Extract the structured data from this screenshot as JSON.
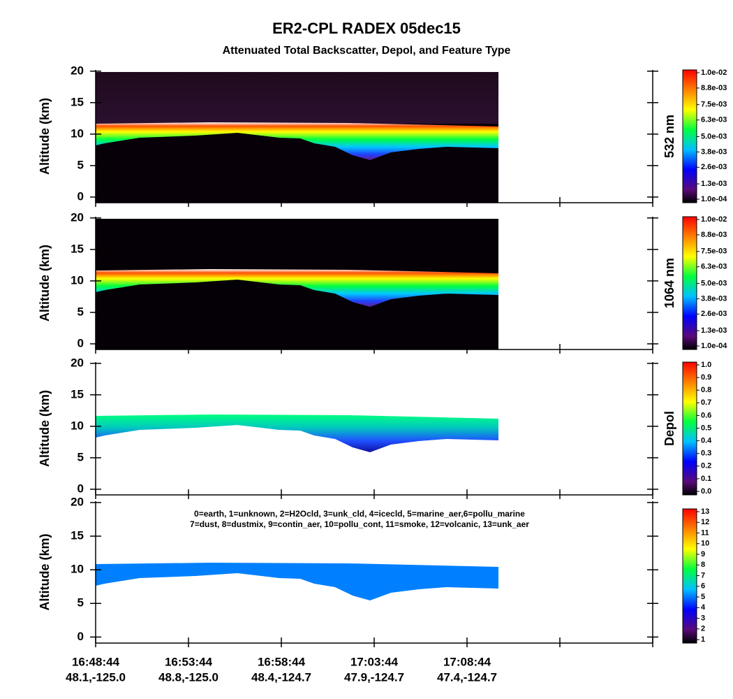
{
  "title": "ER2-CPL  RADEX  05dec15",
  "subtitle": "Attenuated Total Backscatter, Depol, and Feature Type",
  "chart_data": [
    {
      "type": "heatmap",
      "y_label": "Altitude (km)",
      "ylim": [
        -0.9,
        20.2
      ],
      "yticks": [
        0,
        5,
        10,
        15,
        20
      ],
      "colorbar_label": "532 nm",
      "clim": [
        0.0001,
        0.01
      ],
      "cticks": [
        {
          "value": 0.0001,
          "label": "1.0e-04"
        },
        {
          "value": 0.0013,
          "label": "1.3e-03"
        },
        {
          "value": 0.0026,
          "label": "2.6e-03"
        },
        {
          "value": 0.0038,
          "label": "3.8e-03"
        },
        {
          "value": 0.005,
          "label": "5.0e-03"
        },
        {
          "value": 0.0063,
          "label": "6.3e-03"
        },
        {
          "value": 0.0075,
          "label": "7.5e-03"
        },
        {
          "value": 0.0088,
          "label": "8.8e-03"
        },
        {
          "value": 0.01,
          "label": "1.0e-02"
        }
      ]
    },
    {
      "type": "heatmap",
      "y_label": "Altitude (km)",
      "ylim": [
        -0.9,
        20.2
      ],
      "yticks": [
        0,
        5,
        10,
        15,
        20
      ],
      "colorbar_label": "1064 nm",
      "clim": [
        0.0001,
        0.01
      ],
      "cticks": [
        {
          "value": 0.0001,
          "label": "1.0e-04"
        },
        {
          "value": 0.0013,
          "label": "1.3e-03"
        },
        {
          "value": 0.0026,
          "label": "2.6e-03"
        },
        {
          "value": 0.0038,
          "label": "3.8e-03"
        },
        {
          "value": 0.005,
          "label": "5.0e-03"
        },
        {
          "value": 0.0063,
          "label": "6.3e-03"
        },
        {
          "value": 0.0075,
          "label": "7.5e-03"
        },
        {
          "value": 0.0088,
          "label": "8.8e-03"
        },
        {
          "value": 0.01,
          "label": "1.0e-02"
        }
      ]
    },
    {
      "type": "heatmap",
      "y_label": "Altitude (km)",
      "ylim": [
        -0.9,
        20.2
      ],
      "yticks": [
        0,
        5,
        10,
        15,
        20
      ],
      "colorbar_label": "Depol",
      "clim": [
        0,
        1
      ],
      "cticks": [
        {
          "value": 0,
          "label": "0.0"
        },
        0.1,
        0.2,
        0.3,
        0.4,
        0.5,
        0.6,
        0.7,
        0.8,
        0.9,
        {
          "value": 1,
          "label": "1.0"
        }
      ]
    },
    {
      "type": "heatmap",
      "y_label": "Altitude (km)",
      "ylim": [
        -0.9,
        20.2
      ],
      "yticks": [
        0,
        5,
        10,
        15,
        20
      ],
      "clim": [
        1,
        13
      ],
      "cticks": [
        1,
        2,
        3,
        4,
        5,
        6,
        7,
        8,
        9,
        10,
        11,
        12,
        13
      ],
      "annotation": [
        "0=earth, 1=unknown, 2=H2Ocld, 3=unk_cld, 4=icecld, 5=marine_aer,6=pollu_marine",
        "7=dust, 8=dustmix, 9=contin_aer, 10=pollu_cont, 11=smoke, 12=volcanic, 13=unk_aer"
      ],
      "categories": [
        "16:48:44",
        "16:53:44",
        "16:58:44",
        "17:03:44",
        "17:08:44",
        null,
        null
      ],
      "category_locations": [
        "48.1,-125.0",
        "48.8,-125.0",
        "48.4,-124.7",
        "47.9,-124.7",
        "47.4,-124.7",
        null,
        null
      ]
    }
  ]
}
